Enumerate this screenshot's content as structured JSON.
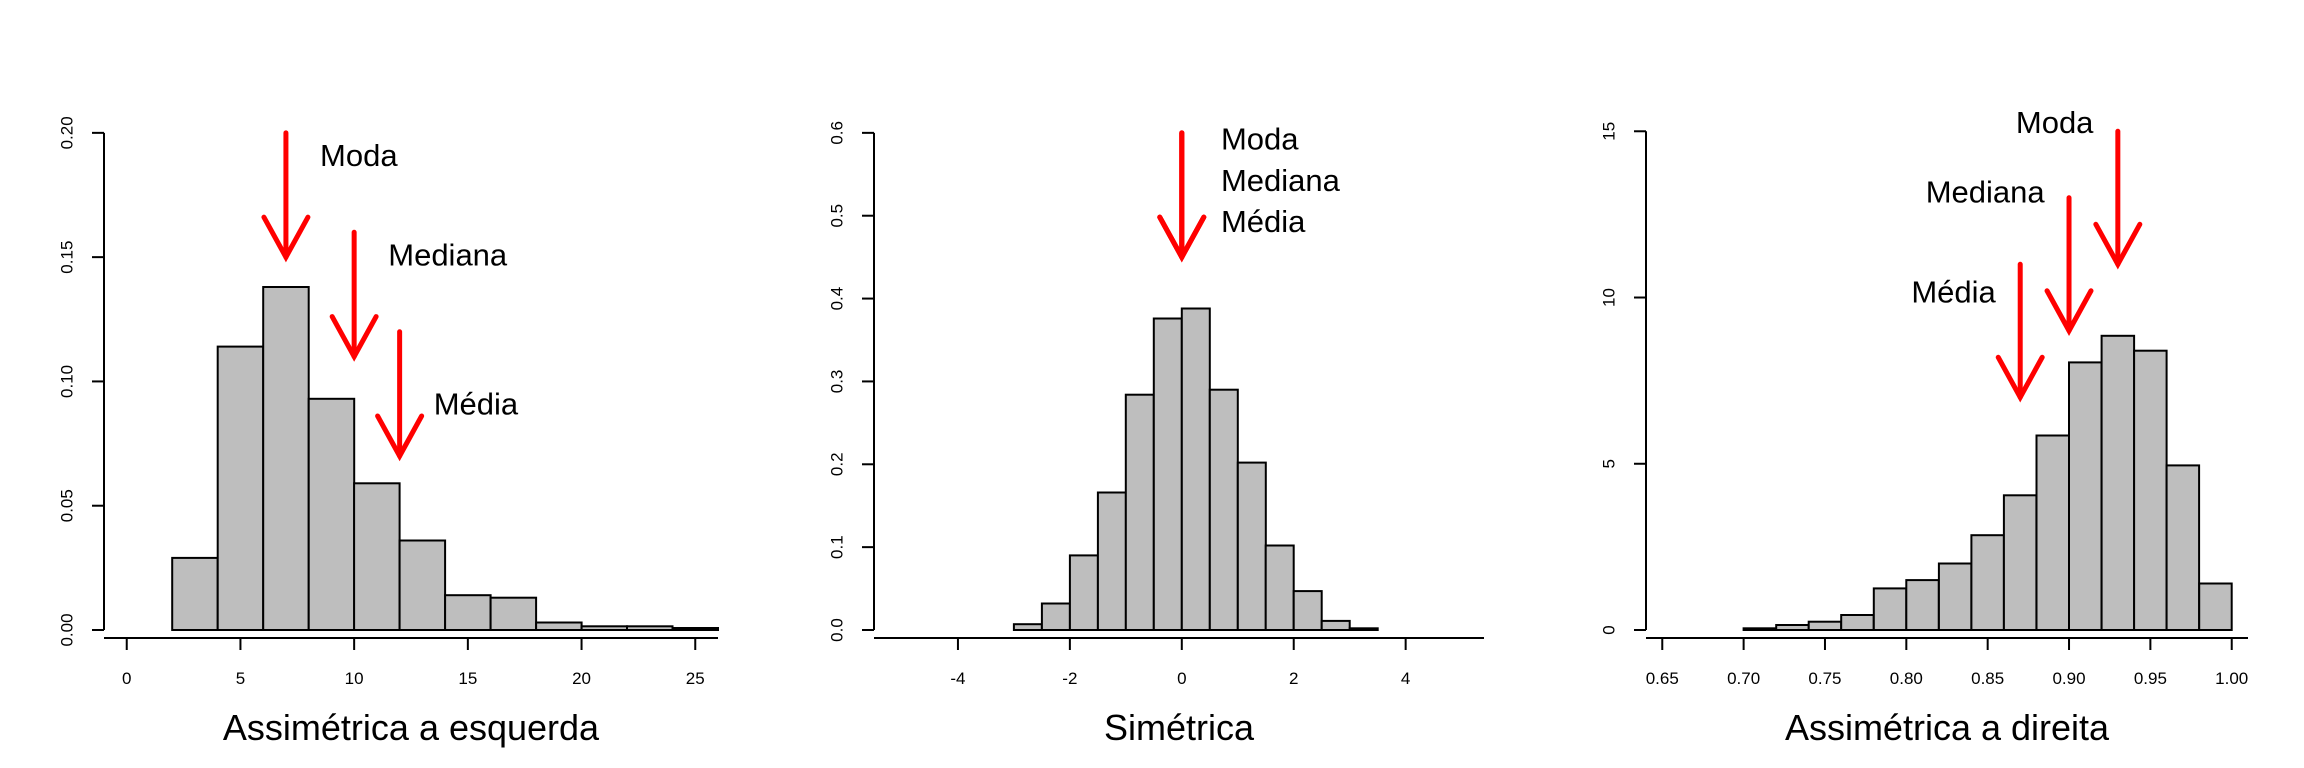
{
  "colors": {
    "bar_fill": "#BEBEBE",
    "bar_stroke": "#000000",
    "arrow": "#FF0000",
    "axis": "#000000"
  },
  "chart_data": [
    {
      "type": "histogram",
      "title": "Assimétrica a esquerda",
      "xlabel": "Assimétrica a esquerda",
      "ylabel": "",
      "xlim": [
        -1,
        26
      ],
      "ylim": [
        0,
        0.21
      ],
      "x_ticks": [
        0,
        5,
        10,
        15,
        20,
        25
      ],
      "x_tick_labels": [
        "0",
        "5",
        "10",
        "15",
        "20",
        "25"
      ],
      "y_ticks": [
        0,
        0.05,
        0.1,
        0.15,
        0.2
      ],
      "y_tick_labels": [
        "0.00",
        "0.05",
        "0.10",
        "0.15",
        "0.20"
      ],
      "bins": [
        {
          "x0": 2,
          "x1": 4,
          "value": 0.029
        },
        {
          "x0": 4,
          "x1": 6,
          "value": 0.114
        },
        {
          "x0": 6,
          "x1": 8,
          "value": 0.138
        },
        {
          "x0": 8,
          "x1": 10,
          "value": 0.093
        },
        {
          "x0": 10,
          "x1": 12,
          "value": 0.059
        },
        {
          "x0": 12,
          "x1": 14,
          "value": 0.036
        },
        {
          "x0": 14,
          "x1": 16,
          "value": 0.014
        },
        {
          "x0": 16,
          "x1": 18,
          "value": 0.013
        },
        {
          "x0": 18,
          "x1": 20,
          "value": 0.003
        },
        {
          "x0": 20,
          "x1": 22,
          "value": 0.0015
        },
        {
          "x0": 22,
          "x1": 24,
          "value": 0.0015
        },
        {
          "x0": 24,
          "x1": 26,
          "value": 0.0008
        }
      ],
      "annotations": [
        {
          "label": "Moda",
          "x": 7,
          "y_top": 0.2,
          "y_tip": 0.15,
          "text_x": 8.5,
          "text_y": 0.19,
          "anchor": "start"
        },
        {
          "label": "Mediana",
          "x": 10,
          "y_top": 0.16,
          "y_tip": 0.11,
          "text_x": 11.5,
          "text_y": 0.15,
          "anchor": "start"
        },
        {
          "label": "Média",
          "x": 12,
          "y_top": 0.12,
          "y_tip": 0.07,
          "text_x": 13.5,
          "text_y": 0.09,
          "anchor": "start"
        }
      ]
    },
    {
      "type": "histogram",
      "title": "Simétrica",
      "xlabel": "Simétrica",
      "ylabel": "",
      "xlim": [
        -5.5,
        5.4
      ],
      "ylim": [
        0,
        0.63
      ],
      "x_ticks": [
        -4,
        -2,
        0,
        2,
        4
      ],
      "x_tick_labels": [
        "-4",
        "-2",
        "0",
        "2",
        "4"
      ],
      "y_ticks": [
        0,
        0.1,
        0.2,
        0.3,
        0.4,
        0.5,
        0.6
      ],
      "y_tick_labels": [
        "0.0",
        "0.1",
        "0.2",
        "0.3",
        "0.4",
        "0.5",
        "0.6"
      ],
      "bins": [
        {
          "x0": -3.0,
          "x1": -2.5,
          "value": 0.007
        },
        {
          "x0": -2.5,
          "x1": -2.0,
          "value": 0.032
        },
        {
          "x0": -2.0,
          "x1": -1.5,
          "value": 0.09
        },
        {
          "x0": -1.5,
          "x1": -1.0,
          "value": 0.166
        },
        {
          "x0": -1.0,
          "x1": -0.5,
          "value": 0.284
        },
        {
          "x0": -0.5,
          "x1": 0.0,
          "value": 0.376
        },
        {
          "x0": 0.0,
          "x1": 0.5,
          "value": 0.388
        },
        {
          "x0": 0.5,
          "x1": 1.0,
          "value": 0.29
        },
        {
          "x0": 1.0,
          "x1": 1.5,
          "value": 0.202
        },
        {
          "x0": 1.5,
          "x1": 2.0,
          "value": 0.102
        },
        {
          "x0": 2.0,
          "x1": 2.5,
          "value": 0.047
        },
        {
          "x0": 2.5,
          "x1": 3.0,
          "value": 0.011
        },
        {
          "x0": 3.0,
          "x1": 3.5,
          "value": 0.002
        }
      ],
      "annotations": [
        {
          "label": "Moda",
          "x": 0,
          "y_top": 0.6,
          "y_tip": 0.45,
          "text_x": 0.7,
          "text_y": 0.59,
          "anchor": "start"
        },
        {
          "label": "Mediana",
          "x": 0,
          "y_top": 0.6,
          "y_tip": 0.45,
          "text_x": 0.7,
          "text_y": 0.54,
          "anchor": "start"
        },
        {
          "label": "Média",
          "x": 0,
          "y_top": 0.6,
          "y_tip": 0.45,
          "text_x": 0.7,
          "text_y": 0.49,
          "anchor": "start"
        }
      ]
    },
    {
      "type": "histogram",
      "title": "Assimétrica a direita",
      "xlabel": "Assimétrica a direita",
      "ylabel": "",
      "xlim": [
        0.64,
        1.01
      ],
      "ylim": [
        0,
        15.7
      ],
      "x_ticks": [
        0.65,
        0.7,
        0.75,
        0.8,
        0.85,
        0.9,
        0.95,
        1.0
      ],
      "x_tick_labels": [
        "0.65",
        "0.70",
        "0.75",
        "0.80",
        "0.85",
        "0.90",
        "0.95",
        "1.00"
      ],
      "y_ticks": [
        0,
        5,
        10,
        15
      ],
      "y_tick_labels": [
        "0",
        "5",
        "10",
        "15"
      ],
      "bins": [
        {
          "x0": 0.7,
          "x1": 0.72,
          "value": 0.05
        },
        {
          "x0": 0.72,
          "x1": 0.74,
          "value": 0.15
        },
        {
          "x0": 0.74,
          "x1": 0.76,
          "value": 0.25
        },
        {
          "x0": 0.76,
          "x1": 0.78,
          "value": 0.45
        },
        {
          "x0": 0.78,
          "x1": 0.8,
          "value": 1.25
        },
        {
          "x0": 0.8,
          "x1": 0.82,
          "value": 1.5
        },
        {
          "x0": 0.82,
          "x1": 0.84,
          "value": 2.0
        },
        {
          "x0": 0.84,
          "x1": 0.86,
          "value": 2.85
        },
        {
          "x0": 0.86,
          "x1": 0.88,
          "value": 4.05
        },
        {
          "x0": 0.88,
          "x1": 0.9,
          "value": 5.85
        },
        {
          "x0": 0.9,
          "x1": 0.92,
          "value": 8.05
        },
        {
          "x0": 0.92,
          "x1": 0.94,
          "value": 8.85
        },
        {
          "x0": 0.94,
          "x1": 0.96,
          "value": 8.4
        },
        {
          "x0": 0.96,
          "x1": 0.98,
          "value": 4.95
        },
        {
          "x0": 0.98,
          "x1": 1.0,
          "value": 1.4
        }
      ],
      "annotations": [
        {
          "label": "Moda",
          "x": 0.93,
          "y_top": 15.0,
          "y_tip": 11.0,
          "text_x": 0.915,
          "text_y": 15.2,
          "anchor": "end"
        },
        {
          "label": "Mediana",
          "x": 0.9,
          "y_top": 13.0,
          "y_tip": 9.0,
          "text_x": 0.885,
          "text_y": 13.1,
          "anchor": "end"
        },
        {
          "label": "Média",
          "x": 0.87,
          "y_top": 11.0,
          "y_tip": 7.0,
          "text_x": 0.855,
          "text_y": 10.1,
          "anchor": "end"
        }
      ]
    }
  ]
}
